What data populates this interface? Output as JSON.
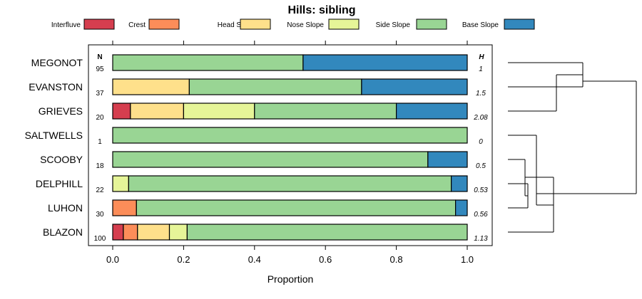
{
  "chart_data": {
    "type": "stacked-bar",
    "title": "Hills: sibling",
    "xlabel": "Proportion",
    "xlim": [
      0,
      1
    ],
    "xticks": [
      "0.0",
      "0.2",
      "0.4",
      "0.6",
      "0.8",
      "1.0"
    ],
    "n_header": "N",
    "h_header": "H",
    "categories": [
      {
        "name": "Interfluve",
        "color": "#d53e4f"
      },
      {
        "name": "Crest",
        "color": "#fc8d59"
      },
      {
        "name": "Head Slope",
        "color": "#fee08b"
      },
      {
        "name": "Nose Slope",
        "color": "#e6f598"
      },
      {
        "name": "Side Slope",
        "color": "#99d594"
      },
      {
        "name": "Base Slope",
        "color": "#3288bd"
      }
    ],
    "rows": [
      {
        "label": "MEGONOT",
        "n": "95",
        "h": "1",
        "values": [
          0,
          0,
          0,
          0,
          0.537,
          0.463
        ]
      },
      {
        "label": "EVANSTON",
        "n": "37",
        "h": "1.5",
        "values": [
          0,
          0,
          0.216,
          0,
          0.486,
          0.298
        ]
      },
      {
        "label": "GRIEVES",
        "n": "20",
        "h": "2.08",
        "values": [
          0.05,
          0,
          0.15,
          0.2,
          0.4,
          0.2
        ]
      },
      {
        "label": "SALTWELLS",
        "n": "1",
        "h": "0",
        "values": [
          0,
          0,
          0,
          0,
          1.0,
          0
        ]
      },
      {
        "label": "SCOOBY",
        "n": "18",
        "h": "0.5",
        "values": [
          0,
          0,
          0,
          0,
          0.889,
          0.111
        ]
      },
      {
        "label": "DELPHILL",
        "n": "22",
        "h": "0.53",
        "values": [
          0,
          0,
          0,
          0.045,
          0.91,
          0.045
        ]
      },
      {
        "label": "LUHON",
        "n": "30",
        "h": "0.56",
        "values": [
          0,
          0.067,
          0,
          0,
          0.9,
          0.033
        ]
      },
      {
        "label": "BLAZON",
        "n": "100",
        "h": "1.13",
        "values": [
          0.03,
          0.04,
          0.09,
          0.05,
          0.79,
          0
        ]
      }
    ],
    "dendrogram": {
      "type": "hierarchical-clustering",
      "merges": [
        {
          "members": [
            "MEGONOT",
            "EVANSTON"
          ],
          "height": 0.15
        },
        {
          "members": [
            "MEGONOT",
            "EVANSTON",
            "GRIEVES"
          ],
          "height": 0.33
        },
        {
          "members": [
            "DELPHILL",
            "LUHON"
          ],
          "height": 0.07
        },
        {
          "members": [
            "SCOOBY",
            "DELPHILL",
            "LUHON"
          ],
          "height": 0.12
        },
        {
          "members": [
            "SCOOBY",
            "DELPHILL",
            "LUHON",
            "BLAZON"
          ],
          "height": 0.2
        },
        {
          "members": [
            "SALTWELLS",
            "SCOOBY",
            "DELPHILL",
            "LUHON",
            "BLAZON"
          ],
          "height": 0.23
        },
        {
          "members": [
            "ALL"
          ],
          "height": 1.0
        }
      ]
    }
  }
}
